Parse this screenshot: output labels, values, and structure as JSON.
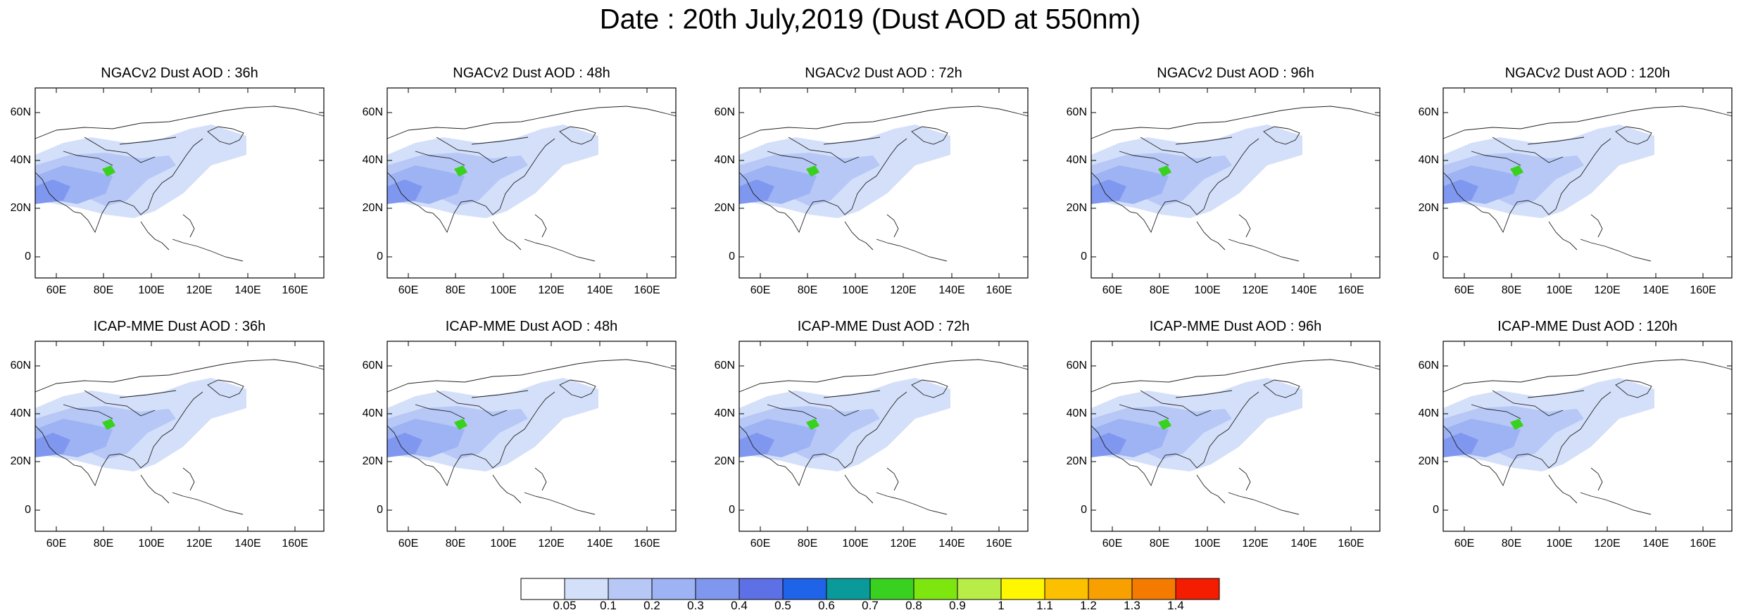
{
  "title": "Date : 20th July,2019 (Dust AOD at 550nm)",
  "lat_ticks": [
    "60N",
    "40N",
    "20N",
    "0"
  ],
  "lon_ticks": [
    "60E",
    "80E",
    "100E",
    "120E",
    "140E",
    "160E"
  ],
  "panels": [
    {
      "title": "NGACv2 Dust AOD : 36h"
    },
    {
      "title": "NGACv2 Dust AOD : 48h"
    },
    {
      "title": "NGACv2 Dust AOD : 72h"
    },
    {
      "title": "NGACv2 Dust AOD : 96h"
    },
    {
      "title": "NGACv2 Dust AOD : 120h"
    },
    {
      "title": "ICAP-MME Dust AOD : 36h"
    },
    {
      "title": "ICAP-MME Dust AOD : 48h"
    },
    {
      "title": "ICAP-MME Dust AOD : 72h"
    },
    {
      "title": "ICAP-MME Dust AOD : 96h"
    },
    {
      "title": "ICAP-MME Dust AOD : 120h"
    }
  ],
  "colorbar": {
    "labels": [
      "0.05",
      "0.1",
      "0.2",
      "0.3",
      "0.4",
      "0.5",
      "0.6",
      "0.7",
      "0.8",
      "0.9",
      "1",
      "1.1",
      "1.2",
      "1.3",
      "1.4"
    ],
    "colors": [
      "#ffffff",
      "#d4e0fa",
      "#b7c8f6",
      "#9db3f3",
      "#7f97ef",
      "#5e70e6",
      "#1f63e8",
      "#0a9a9a",
      "#39d11f",
      "#7ee60f",
      "#b8ec47",
      "#fff700",
      "#fbc000",
      "#f8a000",
      "#f57a00",
      "#f41d00"
    ]
  }
}
